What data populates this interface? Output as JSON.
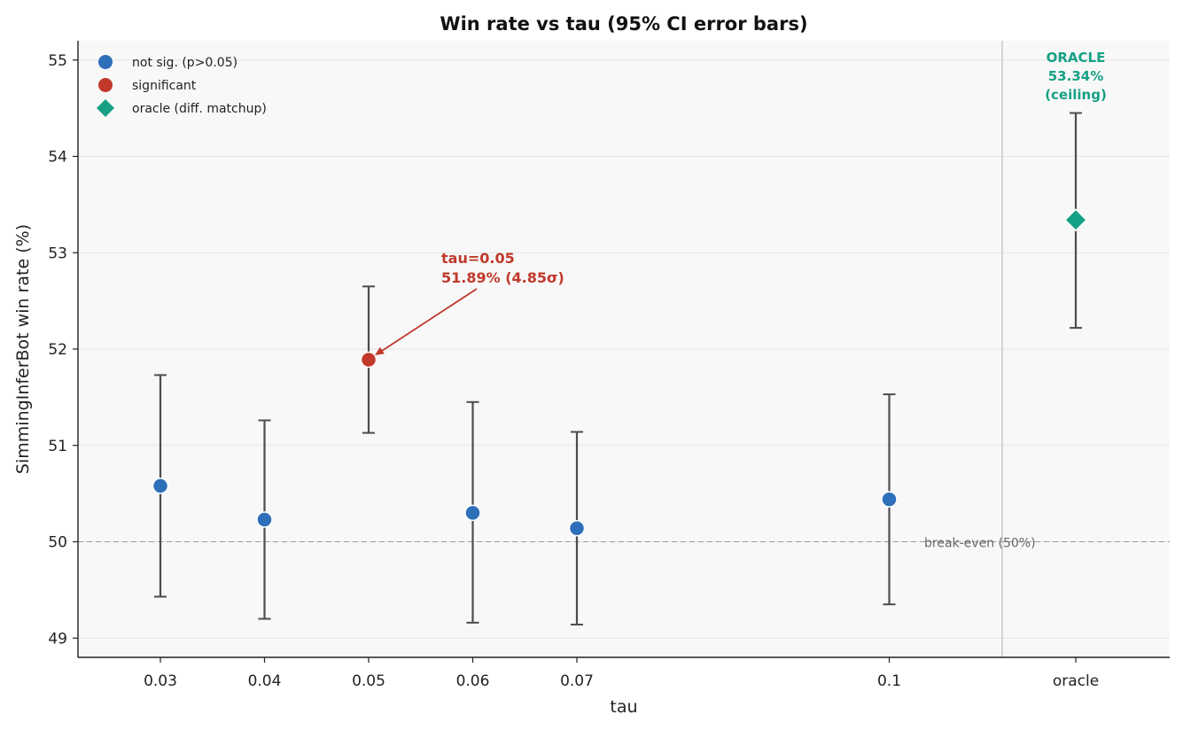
{
  "chart_data": {
    "type": "scatter",
    "title": "Win rate vs tau  (95% CI error bars)",
    "xlabel": "tau",
    "ylabel": "SimmingInferBot win rate (%)",
    "ylim": [
      48.8,
      55.2
    ],
    "yticks": [
      "49",
      "50",
      "51",
      "52",
      "53",
      "54",
      "55"
    ],
    "categories": [
      "0.03",
      "0.04",
      "0.05",
      "0.06",
      "0.07",
      "0.1",
      "oracle"
    ],
    "points": [
      {
        "x": 0.03,
        "y": 50.58,
        "ci_low": 49.43,
        "ci_high": 51.73,
        "status": "not_sig"
      },
      {
        "x": 0.04,
        "y": 50.23,
        "ci_low": 49.2,
        "ci_high": 51.26,
        "status": "not_sig"
      },
      {
        "x": 0.05,
        "y": 51.89,
        "ci_low": 51.13,
        "ci_high": 52.65,
        "status": "significant"
      },
      {
        "x": 0.06,
        "y": 50.3,
        "ci_low": 49.16,
        "ci_high": 51.45,
        "status": "not_sig"
      },
      {
        "x": 0.07,
        "y": 50.14,
        "ci_low": 49.14,
        "ci_high": 51.14,
        "status": "not_sig"
      },
      {
        "x": 0.1,
        "y": 50.44,
        "ci_low": 49.35,
        "ci_high": 51.53,
        "status": "not_sig"
      },
      {
        "x": "oracle",
        "y": 53.34,
        "ci_low": 52.22,
        "ci_high": 54.45,
        "status": "oracle"
      }
    ],
    "legend": {
      "placement": "top-left",
      "items": [
        {
          "key": "not_sig",
          "label": "not sig. (p>0.05)"
        },
        {
          "key": "significant",
          "label": "significant"
        },
        {
          "key": "oracle",
          "label": "oracle (diff. matchup)"
        }
      ]
    },
    "reference_line": {
      "y": 50,
      "label": "break-even (50%)"
    },
    "annotations": {
      "significant_line1": "tau=0.05",
      "significant_line2": "51.89% (4.85σ)",
      "oracle_line1": "ORACLE",
      "oracle_line2": "53.34%",
      "oracle_line3": "(ceiling)"
    },
    "colors": {
      "not_sig": "#2e6fba",
      "significant": "#c0392b",
      "oracle": "#16a085",
      "errorbar": "#4d4d4d",
      "plot_bg": "#f8f8f8",
      "grid": "#e6e6e6"
    },
    "grid": true
  }
}
